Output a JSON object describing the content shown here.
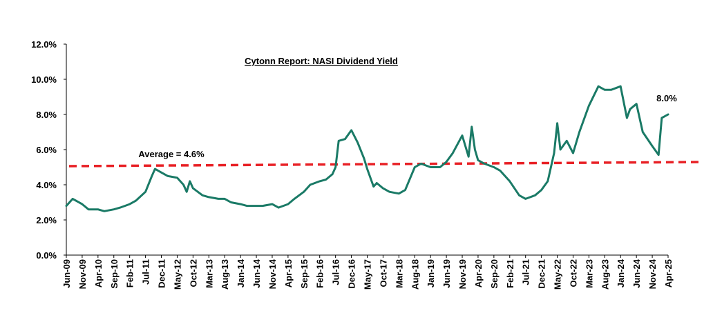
{
  "chart_data": {
    "type": "line",
    "title": "Cytonn Report: NASI Dividend Yield",
    "xlabel": "",
    "ylabel": "",
    "ylim": [
      0,
      12
    ],
    "y_ticks": [
      "0.0%",
      "2.0%",
      "4.0%",
      "6.0%",
      "8.0%",
      "10.0%",
      "12.0%"
    ],
    "y_tick_values": [
      0,
      2,
      4,
      6,
      8,
      10,
      12
    ],
    "x_ticks": [
      "Jun-09",
      "Nov-09",
      "Apr-10",
      "Sep-10",
      "Feb-11",
      "Jul-11",
      "Dec-11",
      "May-12",
      "Oct-12",
      "Mar-13",
      "Aug-13",
      "Jan-14",
      "Jun-14",
      "Nov-14",
      "Apr-15",
      "Sep-15",
      "Feb-16",
      "Jul-16",
      "Dec-16",
      "May-17",
      "Oct-17",
      "Mar-18",
      "Aug-18",
      "Jan-19",
      "Jun-19",
      "Nov-19",
      "Apr-20",
      "Sep-20",
      "Feb-21",
      "Jul-21",
      "Dec-21",
      "May-22",
      "Oct-22",
      "Mar-23",
      "Aug-23",
      "Jan-24",
      "Jun-24",
      "Nov-24",
      "Apr-25"
    ],
    "grid": false,
    "series": [
      {
        "color": "#1a7a66",
        "x": [
          "Jun-09",
          "Aug-09",
          "Nov-09",
          "Jan-10",
          "Apr-10",
          "Jun-10",
          "Sep-10",
          "Nov-10",
          "Feb-11",
          "Apr-11",
          "Jul-11",
          "Sep-11",
          "Oct-11",
          "Dec-11",
          "Feb-12",
          "May-12",
          "Jul-12",
          "Aug-12",
          "Sep-12",
          "Oct-12",
          "Jan-13",
          "Mar-13",
          "Jun-13",
          "Aug-13",
          "Oct-13",
          "Jan-14",
          "Mar-14",
          "Jun-14",
          "Aug-14",
          "Nov-14",
          "Jan-15",
          "Apr-15",
          "Jun-15",
          "Sep-15",
          "Nov-15",
          "Feb-16",
          "Apr-16",
          "Jun-16",
          "Jul-16",
          "Aug-16",
          "Oct-16",
          "Dec-16",
          "Feb-17",
          "Apr-17",
          "May-17",
          "Jul-17",
          "Aug-17",
          "Oct-17",
          "Dec-17",
          "Mar-18",
          "May-18",
          "Aug-18",
          "Oct-18",
          "Jan-19",
          "Apr-19",
          "Jun-19",
          "Aug-19",
          "Nov-19",
          "Jan-20",
          "Feb-20",
          "Mar-20",
          "Apr-20",
          "Jun-20",
          "Sep-20",
          "Nov-20",
          "Feb-21",
          "May-21",
          "Jul-21",
          "Oct-21",
          "Dec-21",
          "Feb-22",
          "Apr-22",
          "May-22",
          "Jun-22",
          "Aug-22",
          "Oct-22",
          "Dec-22",
          "Mar-23",
          "Jun-23",
          "Aug-23",
          "Oct-23",
          "Jan-24",
          "Mar-24",
          "Apr-24",
          "Jun-24",
          "Aug-24",
          "Nov-24",
          "Jan-25",
          "Feb-25",
          "Apr-25"
        ],
        "values": [
          2.8,
          3.2,
          2.9,
          2.6,
          2.6,
          2.5,
          2.6,
          2.7,
          2.9,
          3.1,
          3.6,
          4.5,
          4.9,
          4.7,
          4.5,
          4.4,
          4.0,
          3.6,
          4.2,
          3.8,
          3.4,
          3.3,
          3.2,
          3.2,
          3.0,
          2.9,
          2.8,
          2.8,
          2.8,
          2.9,
          2.7,
          2.9,
          3.2,
          3.6,
          4.0,
          4.2,
          4.3,
          4.6,
          5.0,
          6.5,
          6.6,
          7.1,
          6.4,
          5.5,
          4.9,
          3.9,
          4.1,
          3.8,
          3.6,
          3.5,
          3.7,
          5.0,
          5.2,
          5.0,
          5.0,
          5.3,
          5.8,
          6.8,
          5.6,
          7.3,
          6.0,
          5.4,
          5.2,
          5.0,
          4.8,
          4.2,
          3.4,
          3.2,
          3.4,
          3.7,
          4.2,
          5.8,
          7.5,
          6.0,
          6.5,
          5.8,
          7.0,
          8.5,
          9.6,
          9.4,
          9.4,
          9.6,
          7.8,
          8.3,
          8.6,
          7.0,
          6.2,
          5.7,
          7.8,
          8.0
        ]
      }
    ],
    "reference_line": {
      "value": 4.6,
      "label": "Average = 4.6%",
      "color": "#e82025"
    },
    "annotations": [
      {
        "text": "8.0%",
        "at": "Apr-25",
        "value": 8.0
      }
    ]
  }
}
